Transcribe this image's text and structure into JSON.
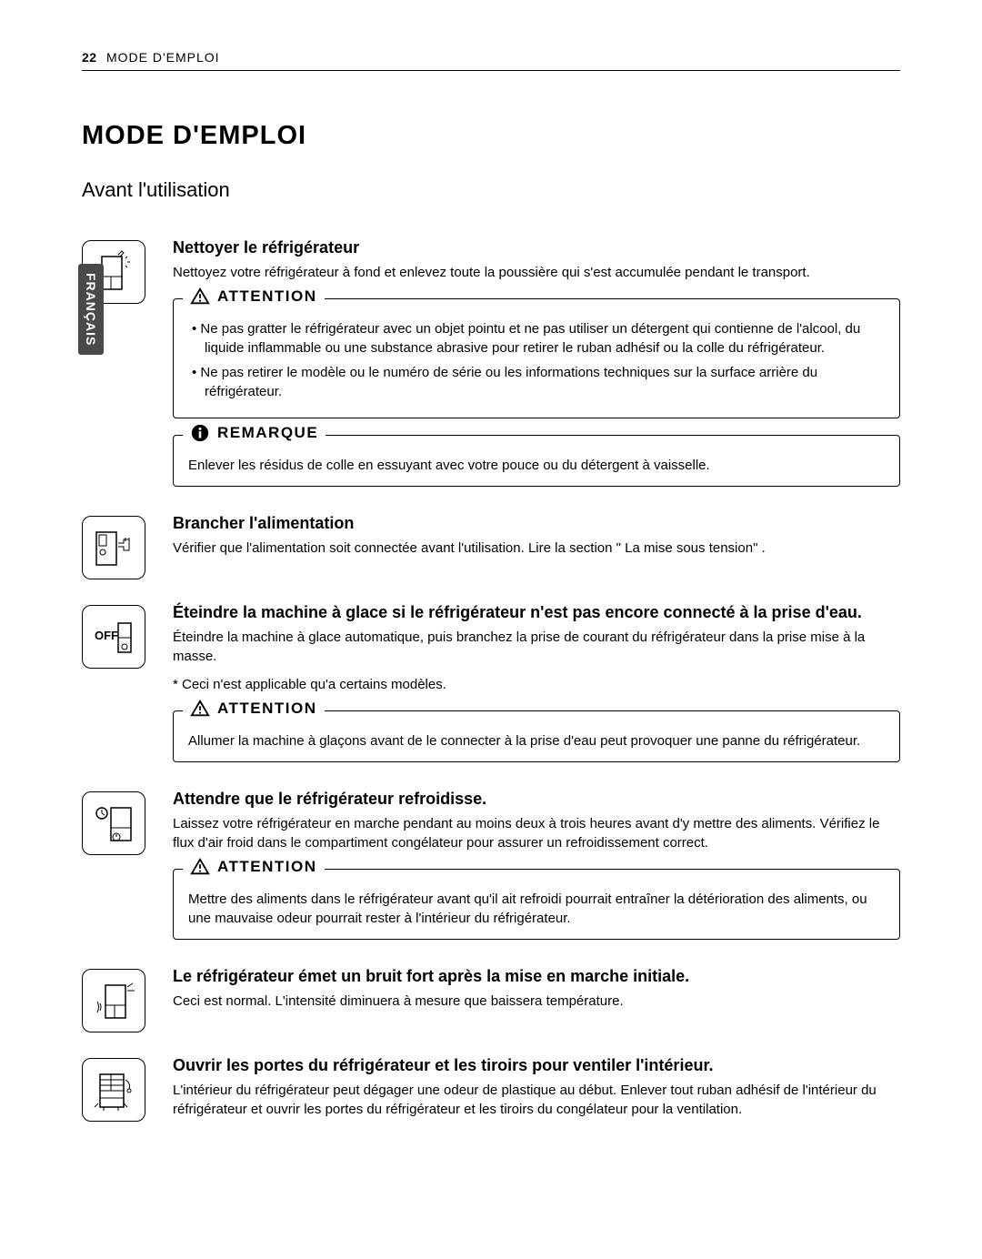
{
  "header": {
    "page_number": "22",
    "breadcrumb": "MODE D'EMPLOI"
  },
  "title": "MODE D'EMPLOI",
  "subtitle": "Avant l'utilisation",
  "lang_tab": "FRANÇAIS",
  "callout_labels": {
    "attention": "ATTENTION",
    "remarque": "REMARQUE"
  },
  "icons": {
    "clean": "fridge-sparkle-icon",
    "plug": "fridge-plug-icon",
    "off": "fridge-off-icon",
    "wait": "fridge-clock-icon",
    "noise": "fridge-sound-icon",
    "open": "fridge-open-icon"
  },
  "colors": {
    "text": "#000000",
    "background": "#ffffff",
    "tab_bg": "#4a4a48",
    "tab_text": "#ffffff",
    "border": "#000000"
  },
  "typography": {
    "body_fontsize": 15,
    "h1_fontsize": 29,
    "h2_fontsize": 22,
    "h3_fontsize": 18,
    "callout_label_fontsize": 17
  },
  "sections": [
    {
      "key": "clean",
      "title": "Nettoyer le réfrigérateur",
      "desc": "Nettoyez votre réfrigérateur à fond et enlevez toute la poussière qui s'est accumulée pendant le transport.",
      "callouts": [
        {
          "type": "attention",
          "items": [
            "Ne pas gratter le réfrigérateur avec un objet pointu et ne pas utiliser un détergent qui contienne  de l'alcool, du liquide inflammable ou une substance abrasive pour retirer le ruban adhésif ou la colle du réfrigérateur.",
            "Ne pas retirer le modèle ou le numéro de série ou les informations techniques sur la surface arrière du réfrigérateur."
          ]
        },
        {
          "type": "remarque",
          "text": "Enlever les résidus de colle en essuyant avec votre pouce ou du détergent à vaisselle."
        }
      ]
    },
    {
      "key": "plug",
      "title": "Brancher l'alimentation",
      "desc": "Vérifier que l'alimentation soit connectée avant l'utilisation. Lire la section \" La mise sous tension\" ."
    },
    {
      "key": "off",
      "title": "Éteindre la machine à glace si le réfrigérateur n'est pas encore connecté à la prise d'eau.",
      "desc": "Éteindre la machine à glace automatique, puis branchez la prise de courant du réfrigérateur dans la prise mise à la masse.",
      "footnote": "*  Ceci n'est applicable qu'a certains modèles.",
      "callouts": [
        {
          "type": "attention",
          "text": "Allumer la machine à glaçons avant de le connecter à la prise d'eau peut provoquer une panne du réfrigérateur."
        }
      ]
    },
    {
      "key": "wait",
      "title": "Attendre que le réfrigérateur refroidisse.",
      "desc": "Laissez votre réfrigérateur en marche pendant au moins deux à trois heures avant d'y mettre des aliments. Vérifiez le flux d'air froid dans le compartiment congélateur pour assurer un refroidissement correct.",
      "callouts": [
        {
          "type": "attention",
          "text": "Mettre des aliments dans le réfrigérateur avant qu'il ait refroidi pourrait entraîner la détérioration des aliments, ou une mauvaise odeur pourrait rester à l'intérieur du réfrigérateur."
        }
      ]
    },
    {
      "key": "noise",
      "title": "Le réfrigérateur émet un bruit fort après la mise en marche initiale.",
      "desc": "Ceci est normal. L'intensité diminuera à mesure que baissera température."
    },
    {
      "key": "open",
      "title": "Ouvrir les portes du réfrigérateur et les tiroirs pour ventiler l'intérieur.",
      "desc": "L'intérieur du réfrigérateur peut dégager une odeur de plastique au début. Enlever tout ruban adhésif de l'intérieur du réfrigérateur et ouvrir les portes du réfrigérateur et les tiroirs du congélateur pour la ventilation."
    }
  ]
}
